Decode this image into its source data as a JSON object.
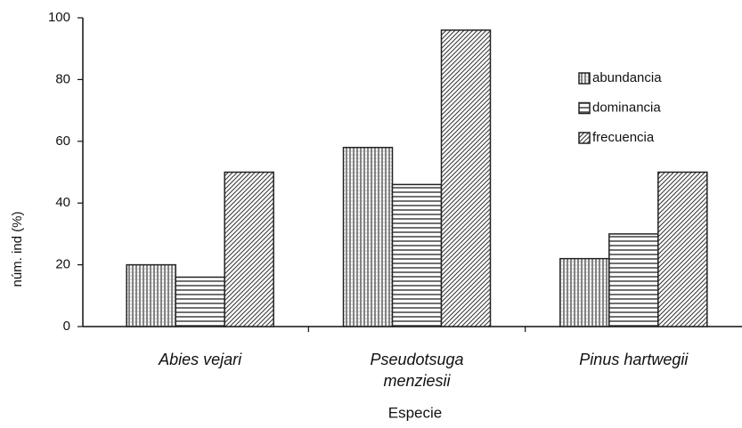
{
  "chart_data": {
    "type": "bar",
    "categories": [
      "Abies vejari",
      "Pseudotsuga menziesii",
      "Pinus hartwegii"
    ],
    "series": [
      {
        "name": "abundancia",
        "color": "#222222",
        "pattern": "vertical",
        "values": [
          20,
          58,
          22
        ]
      },
      {
        "name": "dominancia",
        "color": "#222222",
        "pattern": "horizontal",
        "values": [
          16,
          46,
          30
        ]
      },
      {
        "name": "frecuencia",
        "color": "#222222",
        "pattern": "diagonal",
        "values": [
          50,
          96,
          50
        ]
      }
    ],
    "ylim": [
      0,
      100
    ],
    "yticks": [
      0,
      20,
      40,
      60,
      80,
      100
    ],
    "ylabel": "núm. ind (%)",
    "xlabel": "Especie",
    "legend": "upper right"
  }
}
